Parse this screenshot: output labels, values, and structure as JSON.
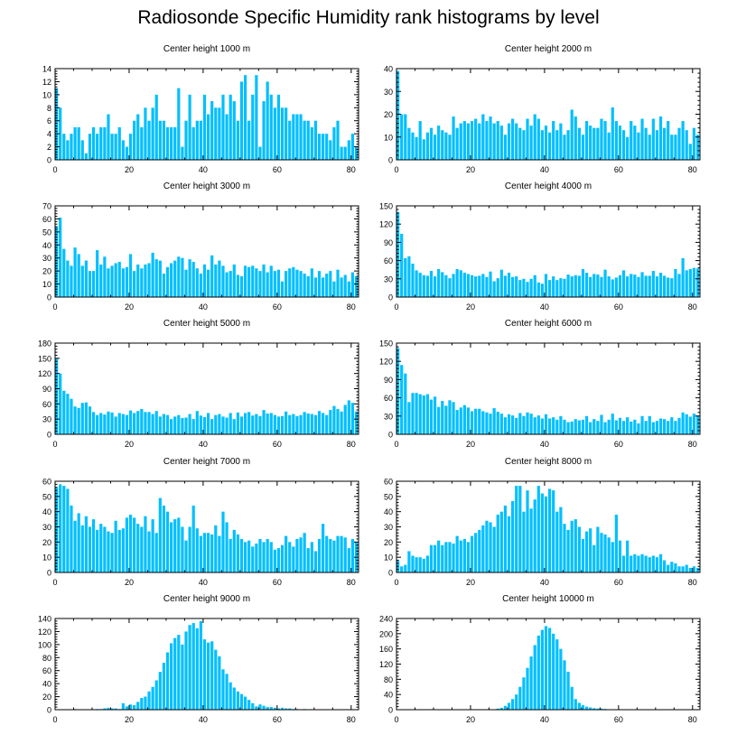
{
  "title": "Radiosonde Specific Humidity rank histograms by level",
  "colors": {
    "bar": "#00bfff",
    "axis": "#000000",
    "background": "#ffffff"
  },
  "chart_data": [
    {
      "type": "bar",
      "title": "Center height 1000 m",
      "xlabel": "",
      "ylabel": "",
      "xlim": [
        0,
        82
      ],
      "ylim": [
        0,
        14
      ],
      "yticks": [
        0,
        2,
        4,
        6,
        8,
        10,
        12,
        14
      ],
      "xticks": [
        0,
        20,
        40,
        60,
        80
      ],
      "values": [
        11,
        8,
        4,
        3,
        4,
        5,
        5,
        3,
        1,
        4,
        5,
        4,
        5,
        5,
        7,
        4,
        4,
        5,
        3,
        2,
        4,
        6,
        7,
        5,
        8,
        6,
        8,
        10,
        6,
        6,
        5,
        5,
        5,
        11,
        2,
        6,
        10,
        5,
        6,
        6,
        10,
        7,
        9,
        8,
        8,
        10,
        7,
        10,
        9,
        6,
        12,
        13,
        6,
        10,
        13,
        2,
        9,
        12,
        10,
        8,
        10,
        8,
        8,
        6,
        7,
        7,
        7,
        6,
        6,
        5,
        6,
        4,
        4,
        4,
        3,
        5,
        6,
        2,
        2,
        3,
        4,
        2
      ]
    },
    {
      "type": "bar",
      "title": "Center height 2000 m",
      "xlabel": "",
      "ylabel": "",
      "xlim": [
        0,
        82
      ],
      "ylim": [
        0,
        40
      ],
      "yticks": [
        0,
        10,
        20,
        30,
        40
      ],
      "xticks": [
        0,
        20,
        40,
        60,
        80
      ],
      "values": [
        39,
        20,
        20,
        14,
        12,
        10,
        17,
        9,
        12,
        14,
        11,
        15,
        13,
        12,
        11,
        19,
        14,
        16,
        17,
        16,
        17,
        18,
        16,
        20,
        17,
        19,
        16,
        17,
        15,
        11,
        16,
        18,
        16,
        14,
        13,
        18,
        15,
        20,
        18,
        13,
        15,
        12,
        17,
        13,
        16,
        11,
        13,
        22,
        19,
        14,
        11,
        17,
        15,
        14,
        14,
        18,
        17,
        12,
        23,
        17,
        15,
        13,
        10,
        17,
        15,
        12,
        18,
        14,
        11,
        18,
        13,
        19,
        14,
        17,
        11,
        11,
        14,
        17,
        13,
        7,
        14,
        11
      ]
    },
    {
      "type": "bar",
      "title": "Center height 3000 m",
      "xlabel": "",
      "ylabel": "",
      "xlim": [
        0,
        82
      ],
      "ylim": [
        0,
        70
      ],
      "yticks": [
        0,
        10,
        20,
        30,
        40,
        50,
        60,
        70
      ],
      "xticks": [
        0,
        20,
        40,
        60,
        80
      ],
      "values": [
        54,
        61,
        37,
        28,
        24,
        38,
        33,
        24,
        28,
        20,
        20,
        36,
        25,
        31,
        22,
        24,
        26,
        27,
        22,
        23,
        33,
        20,
        25,
        22,
        25,
        26,
        34,
        29,
        28,
        18,
        23,
        26,
        28,
        31,
        30,
        21,
        29,
        27,
        22,
        18,
        25,
        21,
        32,
        25,
        28,
        24,
        19,
        20,
        25,
        17,
        16,
        24,
        23,
        24,
        22,
        20,
        25,
        19,
        24,
        20,
        21,
        12,
        20,
        22,
        23,
        21,
        20,
        18,
        16,
        22,
        15,
        20,
        15,
        18,
        20,
        12,
        21,
        15,
        17,
        12,
        19,
        16
      ]
    },
    {
      "type": "bar",
      "title": "Center height 4000 m",
      "xlabel": "",
      "ylabel": "",
      "xlim": [
        0,
        82
      ],
      "ylim": [
        0,
        150
      ],
      "yticks": [
        0,
        30,
        60,
        90,
        120,
        150
      ],
      "xticks": [
        0,
        20,
        40,
        60,
        80
      ],
      "values": [
        140,
        104,
        64,
        67,
        55,
        44,
        40,
        36,
        35,
        43,
        34,
        46,
        41,
        36,
        31,
        38,
        46,
        44,
        40,
        38,
        36,
        34,
        35,
        38,
        33,
        42,
        26,
        31,
        45,
        35,
        40,
        33,
        34,
        28,
        30,
        25,
        30,
        36,
        24,
        22,
        38,
        28,
        34,
        28,
        31,
        30,
        37,
        34,
        36,
        35,
        46,
        40,
        33,
        38,
        37,
        33,
        45,
        34,
        29,
        32,
        36,
        44,
        34,
        38,
        37,
        33,
        41,
        35,
        35,
        43,
        34,
        40,
        35,
        32,
        31,
        46,
        38,
        64,
        44,
        46,
        48,
        47
      ]
    },
    {
      "type": "bar",
      "title": "Center height 5000 m",
      "xlabel": "",
      "ylabel": "",
      "xlim": [
        0,
        82
      ],
      "ylim": [
        0,
        180
      ],
      "yticks": [
        0,
        30,
        60,
        90,
        120,
        150,
        180
      ],
      "xticks": [
        0,
        20,
        40,
        60,
        80
      ],
      "values": [
        150,
        120,
        86,
        80,
        70,
        55,
        52,
        62,
        63,
        55,
        44,
        38,
        42,
        39,
        45,
        43,
        35,
        42,
        40,
        38,
        47,
        42,
        46,
        50,
        44,
        44,
        40,
        46,
        35,
        40,
        38,
        30,
        35,
        38,
        32,
        33,
        40,
        30,
        46,
        37,
        34,
        42,
        30,
        38,
        40,
        35,
        33,
        42,
        30,
        43,
        35,
        42,
        44,
        37,
        40,
        36,
        48,
        41,
        42,
        38,
        35,
        36,
        45,
        38,
        40,
        36,
        38,
        44,
        41,
        40,
        38,
        46,
        42,
        38,
        48,
        56,
        50,
        45,
        58,
        67,
        62,
        45
      ]
    },
    {
      "type": "bar",
      "title": "Center height 6000 m",
      "xlabel": "",
      "ylabel": "",
      "xlim": [
        0,
        82
      ],
      "ylim": [
        0,
        150
      ],
      "yticks": [
        0,
        30,
        60,
        90,
        120,
        150
      ],
      "xticks": [
        0,
        20,
        40,
        60,
        80
      ],
      "values": [
        142,
        114,
        100,
        53,
        68,
        68,
        66,
        64,
        66,
        57,
        62,
        45,
        55,
        47,
        56,
        53,
        40,
        44,
        48,
        44,
        38,
        42,
        42,
        38,
        36,
        34,
        43,
        37,
        34,
        28,
        33,
        31,
        27,
        35,
        30,
        36,
        34,
        28,
        31,
        26,
        33,
        26,
        28,
        24,
        30,
        24,
        20,
        21,
        25,
        23,
        24,
        30,
        20,
        25,
        22,
        32,
        20,
        24,
        34,
        23,
        27,
        22,
        28,
        21,
        24,
        18,
        30,
        22,
        30,
        20,
        22,
        26,
        25,
        22,
        28,
        22,
        27,
        36,
        33,
        29,
        34,
        31
      ]
    },
    {
      "type": "bar",
      "title": "Center height 7000 m",
      "xlabel": "",
      "ylabel": "",
      "xlim": [
        0,
        82
      ],
      "ylim": [
        0,
        60
      ],
      "yticks": [
        0,
        10,
        20,
        30,
        40,
        50,
        60
      ],
      "xticks": [
        0,
        20,
        40,
        60,
        80
      ],
      "values": [
        56,
        58,
        57,
        55,
        44,
        34,
        39,
        31,
        37,
        30,
        35,
        28,
        32,
        30,
        27,
        26,
        34,
        28,
        29,
        36,
        38,
        36,
        32,
        30,
        37,
        27,
        35,
        26,
        49,
        44,
        40,
        33,
        35,
        36,
        30,
        21,
        30,
        44,
        29,
        24,
        26,
        26,
        25,
        31,
        24,
        40,
        33,
        22,
        28,
        25,
        22,
        20,
        21,
        17,
        19,
        22,
        20,
        22,
        20,
        15,
        16,
        18,
        24,
        20,
        17,
        22,
        23,
        26,
        16,
        20,
        14,
        22,
        32,
        24,
        22,
        21,
        24,
        24,
        23,
        16,
        22,
        20
      ]
    },
    {
      "type": "bar",
      "title": "Center height 8000 m",
      "xlabel": "",
      "ylabel": "",
      "xlim": [
        0,
        82
      ],
      "ylim": [
        0,
        60
      ],
      "yticks": [
        0,
        10,
        20,
        30,
        40,
        50,
        60
      ],
      "xticks": [
        0,
        20,
        40,
        60,
        80
      ],
      "values": [
        8,
        4,
        5,
        14,
        11,
        10,
        10,
        9,
        11,
        18,
        18,
        21,
        18,
        20,
        20,
        19,
        24,
        21,
        22,
        20,
        24,
        26,
        28,
        31,
        34,
        33,
        30,
        38,
        40,
        44,
        37,
        47,
        57,
        57,
        40,
        54,
        42,
        48,
        57,
        52,
        50,
        55,
        54,
        40,
        43,
        32,
        28,
        34,
        35,
        30,
        22,
        27,
        29,
        18,
        30,
        26,
        25,
        23,
        20,
        38,
        21,
        11,
        21,
        11,
        12,
        11,
        12,
        11,
        10,
        11,
        10,
        12,
        8,
        5,
        7,
        6,
        4,
        4,
        5,
        3,
        4,
        3
      ]
    },
    {
      "type": "bar",
      "title": "Center height 9000 m",
      "xlabel": "",
      "ylabel": "",
      "xlim": [
        0,
        82
      ],
      "ylim": [
        0,
        140
      ],
      "yticks": [
        0,
        20,
        40,
        60,
        80,
        100,
        120,
        140
      ],
      "xticks": [
        0,
        20,
        40,
        60,
        80
      ],
      "values": [
        0,
        0,
        0,
        0,
        0,
        1,
        0,
        0,
        0,
        0,
        0,
        1,
        1,
        2,
        3,
        2,
        2,
        1,
        10,
        5,
        8,
        7,
        12,
        18,
        20,
        28,
        35,
        45,
        58,
        72,
        88,
        102,
        110,
        115,
        100,
        120,
        130,
        133,
        125,
        136,
        108,
        103,
        105,
        92,
        82,
        62,
        55,
        42,
        34,
        28,
        24,
        20,
        15,
        10,
        5,
        8,
        6,
        4,
        4,
        3,
        2,
        3,
        2,
        2,
        1,
        1,
        0,
        1,
        0,
        0,
        0,
        0,
        0,
        0,
        0,
        0,
        0,
        0,
        0,
        0,
        0,
        0
      ]
    },
    {
      "type": "bar",
      "title": "Center height 10000 m",
      "xlabel": "",
      "ylabel": "",
      "xlim": [
        0,
        82
      ],
      "ylim": [
        0,
        240
      ],
      "yticks": [
        0,
        40,
        80,
        120,
        160,
        200,
        240
      ],
      "xticks": [
        0,
        20,
        40,
        60,
        80
      ],
      "values": [
        0,
        0,
        0,
        0,
        0,
        0,
        0,
        0,
        0,
        0,
        0,
        0,
        0,
        0,
        0,
        0,
        0,
        0,
        0,
        0,
        0,
        0,
        0,
        0,
        0,
        1,
        1,
        3,
        5,
        10,
        18,
        28,
        40,
        60,
        85,
        110,
        140,
        170,
        195,
        210,
        220,
        215,
        200,
        185,
        160,
        130,
        100,
        60,
        28,
        18,
        12,
        8,
        6,
        4,
        3,
        3,
        2,
        1,
        1,
        1,
        0,
        1,
        0,
        0,
        0,
        0,
        0,
        0,
        0,
        0,
        0,
        0,
        0,
        0,
        0,
        0,
        0,
        0,
        0,
        0,
        0,
        0
      ]
    }
  ]
}
